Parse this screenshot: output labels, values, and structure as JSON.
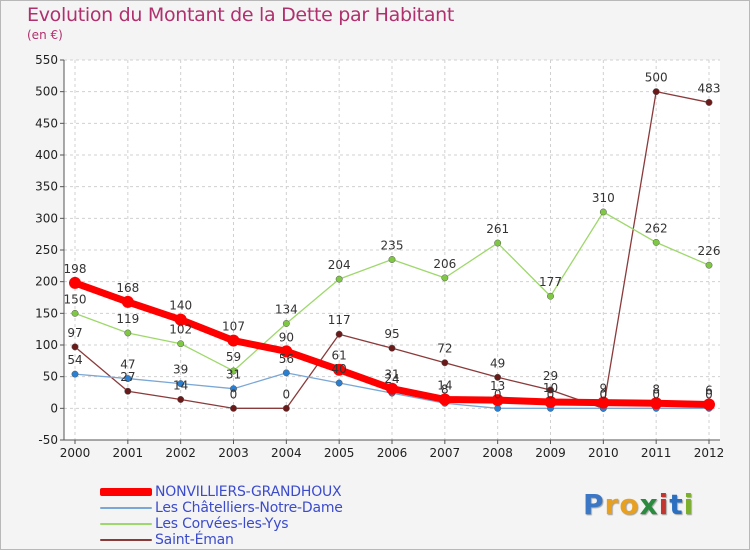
{
  "title": "Evolution du Montant de la Dette par Habitant",
  "unit": "(en €)",
  "logo": {
    "text": "Proxiti",
    "colors": [
      "#3b77c4",
      "#e8a021",
      "#e8a021",
      "#2a8a3e",
      "#c2362f",
      "#2a6fc0",
      "#7cb02c"
    ]
  },
  "colors": {
    "title": "#b0306e",
    "legend_text": "#3b4bcc",
    "grid": "#d0d0d0",
    "axis": "#555555",
    "background": "#f4f4f4"
  },
  "chart_data": {
    "type": "line",
    "x": [
      2000,
      2001,
      2002,
      2003,
      2004,
      2005,
      2006,
      2007,
      2008,
      2009,
      2010,
      2011,
      2012
    ],
    "ylim": [
      -50,
      550
    ],
    "ytick_step": 50,
    "grid": true,
    "legend_position": "bottom-left",
    "series": [
      {
        "name": "NONVILLIERS-GRANDHOUX",
        "color": "#ff0000",
        "marker": "#ff0000",
        "width": 7,
        "dot": 6,
        "labelcolor": "#333333",
        "values": [
          198,
          168,
          140,
          107,
          90,
          61,
          31,
          14,
          13,
          10,
          9,
          8,
          6
        ],
        "labels": [
          "198",
          "168",
          "140",
          "107",
          "90",
          "61",
          "31",
          "14",
          "13",
          "10",
          "9",
          "8",
          "6"
        ]
      },
      {
        "name": "Les Châtelliers-Notre-Dame",
        "color": "#7aa7d6",
        "marker": "#2a7fd0",
        "width": 1.3,
        "dot": 3.2,
        "values": [
          54,
          47,
          39,
          31,
          56,
          40,
          24,
          8,
          0,
          0,
          0,
          0,
          0
        ],
        "labels": [
          "54",
          "47",
          "39",
          "31",
          "56",
          "40",
          "24",
          "8",
          "0",
          "0",
          "0",
          "0",
          "0"
        ]
      },
      {
        "name": "Les Corvées-les-Yys",
        "color": "#9ed86b",
        "marker": "#7fc843",
        "width": 1.3,
        "dot": 3.2,
        "values": [
          150,
          119,
          102,
          59,
          134,
          204,
          235,
          206,
          261,
          177,
          310,
          262,
          226
        ],
        "labels": [
          "150",
          "119",
          "102",
          "59",
          "134",
          "204",
          "235",
          "206",
          "261",
          "177",
          "310",
          "262",
          "226"
        ]
      },
      {
        "name": "Saint-Éman",
        "color": "#8b3a3a",
        "marker": "#6b1a1a",
        "width": 1.3,
        "dot": 3.2,
        "values": [
          97,
          27,
          14,
          0,
          0,
          117,
          95,
          72,
          49,
          29,
          0,
          500,
          483
        ],
        "labels": [
          "97",
          "27",
          "14",
          "0",
          "0",
          "117",
          "95",
          "72",
          "49",
          "29",
          "0",
          "500",
          "483"
        ]
      }
    ]
  }
}
